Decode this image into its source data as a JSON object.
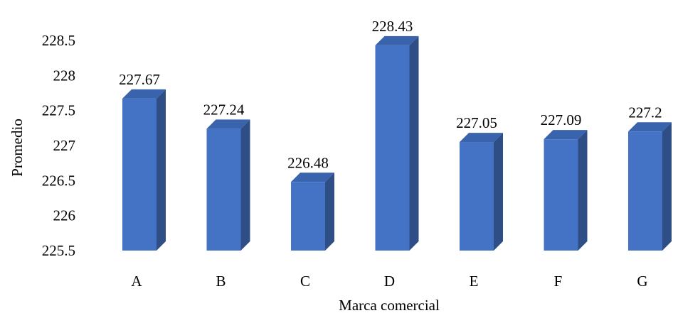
{
  "chart_data": {
    "type": "bar",
    "style": "3d-column",
    "categories": [
      "A",
      "B",
      "C",
      "D",
      "E",
      "F",
      "G"
    ],
    "values": [
      227.67,
      227.24,
      226.48,
      228.43,
      227.05,
      227.09,
      227.2
    ],
    "data_labels": [
      "227.67",
      "227.24",
      "226.48",
      "228.43",
      "227.05",
      "227.09",
      "227.2"
    ],
    "xlabel": "Marca comercial",
    "ylabel": "Promedio",
    "ylim": [
      225.5,
      228.5
    ],
    "y_ticks": [
      "225.5",
      "226",
      "226.5",
      "227",
      "227.5",
      "228",
      "228.5"
    ],
    "grid": false,
    "legend": "none",
    "colors": {
      "bar_front": "#4472C4",
      "bar_side": "#2F4E86",
      "bar_top": "#3A63AE"
    }
  }
}
